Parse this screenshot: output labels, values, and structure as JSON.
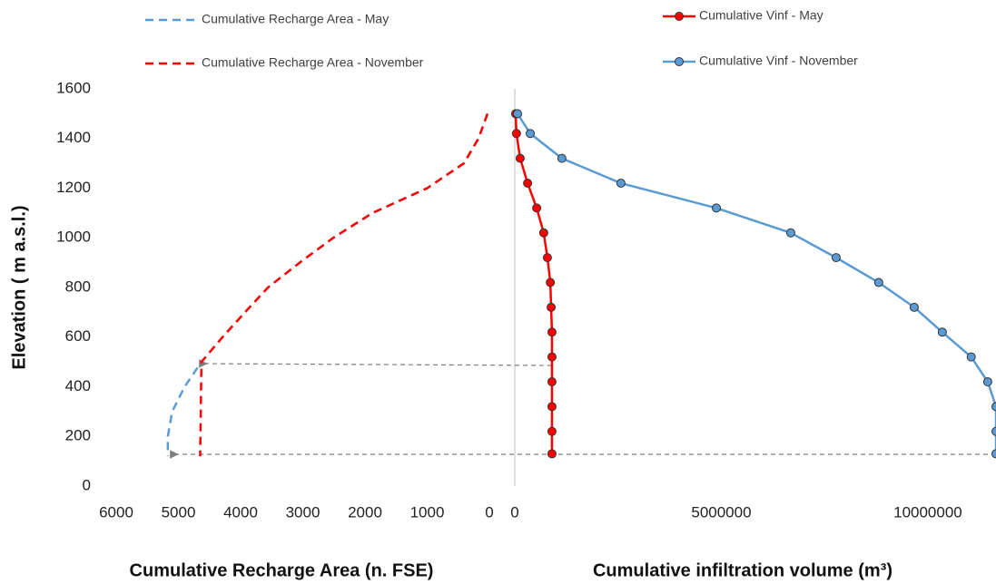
{
  "chart_data": [
    {
      "type": "line",
      "ylabel": "Elevation ( m a.s.l.)",
      "xlabel": "Cumulative Recharge Area (n. FSE)",
      "xlim": [
        6000,
        0
      ],
      "xticks": [
        6000,
        5000,
        4000,
        3000,
        2000,
        1000,
        0
      ],
      "ylim": [
        0,
        1600
      ],
      "yticks": [
        0,
        200,
        400,
        600,
        800,
        1000,
        1200,
        1400,
        1600
      ],
      "series": [
        {
          "name": "Cumulative Recharge Area - May",
          "color": "#5b9bd5",
          "line_style": "dashed",
          "marker": "none",
          "x": [
            30,
            175,
            410,
            1000,
            1880,
            2510,
            3050,
            3560,
            3930,
            4290,
            4630,
            4900,
            5100,
            5170,
            5170
          ],
          "y": [
            1500,
            1400,
            1300,
            1200,
            1100,
            1000,
            900,
            800,
            700,
            600,
            500,
            400,
            300,
            200,
            120
          ]
        },
        {
          "name": "Cumulative Recharge Area - November",
          "color": "#ff0000",
          "line_style": "dashed",
          "marker": "none",
          "x": [
            30,
            175,
            410,
            1000,
            1880,
            2510,
            3050,
            3560,
            3930,
            4290,
            4630,
            4650
          ],
          "y": [
            1500,
            1400,
            1300,
            1200,
            1100,
            1000,
            900,
            800,
            700,
            600,
            500,
            120
          ]
        }
      ]
    },
    {
      "type": "line",
      "xlabel": "Cumulative infiltration volume (m³)",
      "xlim": [
        0,
        11650000
      ],
      "xticks": [
        0,
        5000000,
        10000000
      ],
      "ylim": [
        0,
        1600
      ],
      "series": [
        {
          "name": "Cumulative Vinf - May",
          "color": "#ff0000",
          "line_style": "solid",
          "marker": "circle",
          "x": [
            20000,
            40000,
            130000,
            310000,
            530000,
            700000,
            790000,
            860000,
            880000,
            900000,
            900000,
            900000,
            900000,
            900000,
            900000
          ],
          "y": [
            1500,
            1420,
            1320,
            1220,
            1120,
            1020,
            920,
            820,
            720,
            620,
            520,
            420,
            320,
            220,
            130
          ]
        },
        {
          "name": "Cumulative Vinf - November",
          "color": "#5b9bd5",
          "line_style": "solid",
          "marker": "circle",
          "x": [
            66000,
            374000,
            1140000,
            2570000,
            4880000,
            6680000,
            7780000,
            8810000,
            9670000,
            10350000,
            11050000,
            11450000,
            11650000,
            11650000,
            11650000
          ],
          "y": [
            1500,
            1420,
            1320,
            1220,
            1120,
            1020,
            920,
            820,
            720,
            620,
            520,
            420,
            320,
            220,
            130
          ]
        }
      ]
    }
  ]
}
